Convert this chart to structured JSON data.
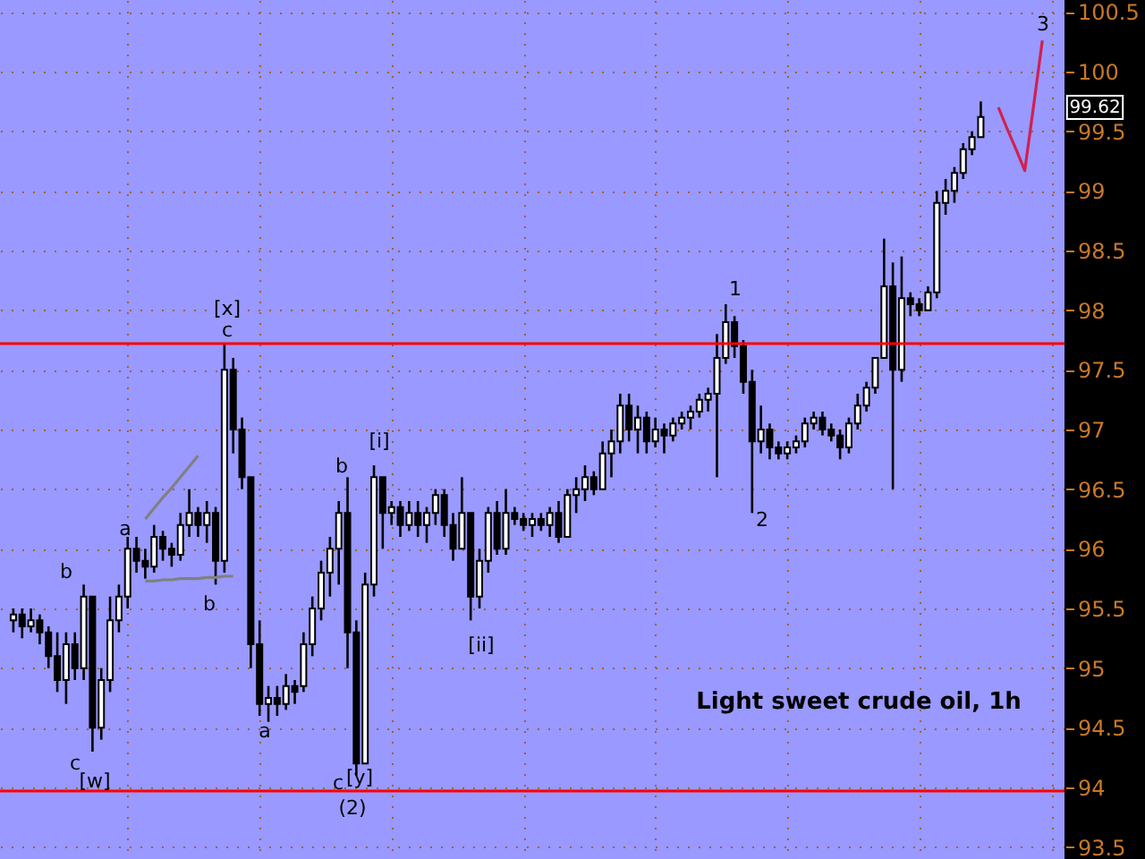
{
  "chart_data": {
    "type": "candlestick",
    "title": "Light sweet crude oil, 1h",
    "color": "#000000",
    "categories": [
      null,
      null,
      null,
      null,
      null,
      null,
      null,
      null,
      null,
      null,
      null,
      null,
      null,
      null,
      null,
      null,
      null,
      null,
      null,
      null,
      null,
      null,
      null,
      null,
      null,
      null,
      null,
      null,
      null,
      null,
      null,
      null,
      null,
      null,
      null,
      null,
      null,
      null,
      null,
      null,
      null,
      null,
      null,
      null,
      null,
      null,
      null,
      null,
      null,
      null,
      null,
      null,
      null,
      null,
      null,
      null,
      null,
      null,
      null,
      null,
      null,
      null,
      null,
      null,
      null,
      null,
      null,
      null,
      null,
      null,
      null,
      null,
      null,
      null,
      null,
      null,
      null,
      null,
      null,
      null,
      null,
      null,
      null,
      null,
      null,
      null,
      null,
      null,
      null,
      null,
      null,
      null,
      null,
      null,
      null,
      null,
      null,
      null,
      null,
      null,
      null,
      null,
      null,
      null,
      null,
      null,
      null,
      null,
      null,
      null,
      null,
      null,
      null,
      null,
      null,
      null,
      null,
      null,
      null
    ],
    "ohlc": [
      [
        95.4,
        95.5,
        95.3,
        95.45
      ],
      [
        95.45,
        95.5,
        95.25,
        95.35
      ],
      [
        95.35,
        95.5,
        95.3,
        95.4
      ],
      [
        95.4,
        95.45,
        95.2,
        95.3
      ],
      [
        95.3,
        95.35,
        95.0,
        95.1
      ],
      [
        95.1,
        95.3,
        94.8,
        94.9
      ],
      [
        94.9,
        95.3,
        94.7,
        95.2
      ],
      [
        95.2,
        95.3,
        94.9,
        95.0
      ],
      [
        95.0,
        95.7,
        94.9,
        95.6
      ],
      [
        95.6,
        95.6,
        94.3,
        94.5
      ],
      [
        94.5,
        95.0,
        94.4,
        94.9
      ],
      [
        94.9,
        95.6,
        94.8,
        95.4
      ],
      [
        95.4,
        95.7,
        95.3,
        95.6
      ],
      [
        95.6,
        96.1,
        95.5,
        96.0
      ],
      [
        96.0,
        96.1,
        95.8,
        95.9
      ],
      [
        95.9,
        96.0,
        95.75,
        95.85
      ],
      [
        95.85,
        96.2,
        95.8,
        96.1
      ],
      [
        96.1,
        96.15,
        95.9,
        96.0
      ],
      [
        96.0,
        96.05,
        95.85,
        95.95
      ],
      [
        95.95,
        96.3,
        95.9,
        96.2
      ],
      [
        96.2,
        96.5,
        96.1,
        96.3
      ],
      [
        96.3,
        96.35,
        96.1,
        96.2
      ],
      [
        96.2,
        96.4,
        96.05,
        96.3
      ],
      [
        96.3,
        96.35,
        95.7,
        95.9
      ],
      [
        95.9,
        97.72,
        95.8,
        97.5
      ],
      [
        97.5,
        97.6,
        96.8,
        97.0
      ],
      [
        97.0,
        97.1,
        96.5,
        96.6
      ],
      [
        96.6,
        96.6,
        95.0,
        95.2
      ],
      [
        95.2,
        95.4,
        94.6,
        94.7
      ],
      [
        94.7,
        94.85,
        94.55,
        94.75
      ],
      [
        94.75,
        94.85,
        94.6,
        94.7
      ],
      [
        94.7,
        94.95,
        94.65,
        94.85
      ],
      [
        94.85,
        94.9,
        94.7,
        94.8
      ],
      [
        94.85,
        95.3,
        94.8,
        95.2
      ],
      [
        95.2,
        95.6,
        95.1,
        95.5
      ],
      [
        95.5,
        95.9,
        95.4,
        95.8
      ],
      [
        95.8,
        96.1,
        95.6,
        96.0
      ],
      [
        96.0,
        96.4,
        95.7,
        96.3
      ],
      [
        96.3,
        96.6,
        95.0,
        95.3
      ],
      [
        95.3,
        95.4,
        94.1,
        94.2
      ],
      [
        94.2,
        95.8,
        94.2,
        95.7
      ],
      [
        95.7,
        96.7,
        95.6,
        96.6
      ],
      [
        96.6,
        96.6,
        96.0,
        96.3
      ],
      [
        96.3,
        96.4,
        96.2,
        96.35
      ],
      [
        96.35,
        96.4,
        96.1,
        96.2
      ],
      [
        96.2,
        96.4,
        96.15,
        96.3
      ],
      [
        96.3,
        96.4,
        96.1,
        96.2
      ],
      [
        96.2,
        96.35,
        96.05,
        96.3
      ],
      [
        96.3,
        96.5,
        96.2,
        96.45
      ],
      [
        96.45,
        96.5,
        96.1,
        96.2
      ],
      [
        96.2,
        96.3,
        95.9,
        96.0
      ],
      [
        96.0,
        96.6,
        96.0,
        96.3
      ],
      [
        96.3,
        96.3,
        95.4,
        95.6
      ],
      [
        95.6,
        96.0,
        95.5,
        95.9
      ],
      [
        95.9,
        96.35,
        95.8,
        96.3
      ],
      [
        96.3,
        96.4,
        95.95,
        96.0
      ],
      [
        96.0,
        96.5,
        95.95,
        96.3
      ],
      [
        96.3,
        96.35,
        96.2,
        96.25
      ],
      [
        96.25,
        96.3,
        96.15,
        96.2
      ],
      [
        96.2,
        96.3,
        96.1,
        96.25
      ],
      [
        96.25,
        96.3,
        96.15,
        96.2
      ],
      [
        96.2,
        96.35,
        96.1,
        96.3
      ],
      [
        96.3,
        96.4,
        96.05,
        96.1
      ],
      [
        96.1,
        96.5,
        96.1,
        96.45
      ],
      [
        96.45,
        96.6,
        96.3,
        96.5
      ],
      [
        96.5,
        96.7,
        96.4,
        96.6
      ],
      [
        96.6,
        96.65,
        96.45,
        96.5
      ],
      [
        96.5,
        96.9,
        96.5,
        96.8
      ],
      [
        96.8,
        97.0,
        96.6,
        96.9
      ],
      [
        96.9,
        97.3,
        96.8,
        97.2
      ],
      [
        97.2,
        97.3,
        96.9,
        97.0
      ],
      [
        97.0,
        97.2,
        96.8,
        97.1
      ],
      [
        97.1,
        97.15,
        96.8,
        96.9
      ],
      [
        96.9,
        97.1,
        96.85,
        97.0
      ],
      [
        97.0,
        97.05,
        96.8,
        96.95
      ],
      [
        96.95,
        97.1,
        96.9,
        97.05
      ],
      [
        97.05,
        97.15,
        97.0,
        97.1
      ],
      [
        97.1,
        97.2,
        97.0,
        97.15
      ],
      [
        97.15,
        97.3,
        97.1,
        97.25
      ],
      [
        97.25,
        97.35,
        97.15,
        97.3
      ],
      [
        97.3,
        97.8,
        96.6,
        97.6
      ],
      [
        97.6,
        98.05,
        97.55,
        97.9
      ],
      [
        97.9,
        97.95,
        97.6,
        97.7
      ],
      [
        97.7,
        97.75,
        97.3,
        97.4
      ],
      [
        97.4,
        97.5,
        96.3,
        96.9
      ],
      [
        96.9,
        97.2,
        96.8,
        97.0
      ],
      [
        97.0,
        97.05,
        96.75,
        96.85
      ],
      [
        96.85,
        96.9,
        96.75,
        96.8
      ],
      [
        96.8,
        96.9,
        96.75,
        96.85
      ],
      [
        96.85,
        96.95,
        96.8,
        96.9
      ],
      [
        96.9,
        97.1,
        96.85,
        97.05
      ],
      [
        97.05,
        97.15,
        97.0,
        97.1
      ],
      [
        97.1,
        97.15,
        96.95,
        97.0
      ],
      [
        97.0,
        97.05,
        96.9,
        96.95
      ],
      [
        96.95,
        97.0,
        96.75,
        96.85
      ],
      [
        96.85,
        97.1,
        96.8,
        97.05
      ],
      [
        97.05,
        97.3,
        97.0,
        97.2
      ],
      [
        97.2,
        97.4,
        97.15,
        97.35
      ],
      [
        97.35,
        97.6,
        97.3,
        97.6
      ],
      [
        97.6,
        98.6,
        97.6,
        98.2
      ],
      [
        98.2,
        98.4,
        96.5,
        97.5
      ],
      [
        97.5,
        98.45,
        97.4,
        98.1
      ],
      [
        98.1,
        98.15,
        97.95,
        98.05
      ],
      [
        98.05,
        98.1,
        97.95,
        98.0
      ],
      [
        98.0,
        98.2,
        98.0,
        98.15
      ],
      [
        98.15,
        99.0,
        98.1,
        98.9
      ],
      [
        98.9,
        99.1,
        98.8,
        99.0
      ],
      [
        99.0,
        99.2,
        98.9,
        99.15
      ],
      [
        99.15,
        99.4,
        99.1,
        99.35
      ],
      [
        99.35,
        99.5,
        99.3,
        99.45
      ],
      [
        99.45,
        99.75,
        99.45,
        99.62
      ],
      null,
      null,
      null,
      null,
      null,
      null,
      null,
      null
    ],
    "series": [
      {
        "type": "line",
        "color": "#808080",
        "values": [
          null,
          null,
          null,
          null,
          null,
          null,
          null,
          null,
          null,
          null,
          null,
          null,
          null,
          null,
          null,
          96.25,
          96.34,
          96.43,
          96.51,
          96.6,
          96.69,
          96.78,
          null,
          null,
          null,
          null,
          null,
          null,
          null,
          null,
          null,
          null,
          null,
          null,
          null,
          null,
          null,
          null,
          null,
          null,
          null,
          null,
          null,
          null,
          null,
          null,
          null,
          null,
          null,
          null,
          null,
          null,
          null,
          null,
          null,
          null,
          null,
          null,
          null,
          null,
          null,
          null,
          null,
          null,
          null,
          null,
          null,
          null,
          null,
          null,
          null,
          null,
          null,
          null,
          null,
          null,
          null,
          null,
          null,
          null,
          null,
          null,
          null,
          null,
          null,
          null,
          null,
          null,
          null,
          null,
          null,
          null,
          null,
          null,
          null,
          null,
          null,
          null,
          null,
          null,
          null,
          null,
          null,
          null,
          null,
          null,
          null,
          null,
          null,
          null,
          null,
          null,
          null,
          null,
          null,
          null,
          null,
          null,
          null
        ]
      },
      {
        "type": "line",
        "color": "#808080",
        "values": [
          null,
          null,
          null,
          null,
          null,
          null,
          null,
          null,
          null,
          null,
          null,
          null,
          null,
          null,
          null,
          95.73,
          95.73,
          95.74,
          95.74,
          95.75,
          95.75,
          95.75,
          95.76,
          95.76,
          95.77,
          95.77,
          null,
          null,
          null,
          null,
          null,
          null,
          null,
          null,
          null,
          null,
          null,
          null,
          null,
          null,
          null,
          null,
          null,
          null,
          null,
          null,
          null,
          null,
          null,
          null,
          null,
          null,
          null,
          null,
          null,
          null,
          null,
          null,
          null,
          null,
          null,
          null,
          null,
          null,
          null,
          null,
          null,
          null,
          null,
          null,
          null,
          null,
          null,
          null,
          null,
          null,
          null,
          null,
          null,
          null,
          null,
          null,
          null,
          null,
          null,
          null,
          null,
          null,
          null,
          null,
          null,
          null,
          null,
          null,
          null,
          null,
          null,
          null,
          null,
          null,
          null,
          null,
          null,
          null,
          null,
          null,
          null,
          null,
          null,
          null,
          null,
          null,
          null,
          null,
          null,
          null,
          null,
          null,
          null
        ]
      },
      {
        "type": "line",
        "color": "#d02050",
        "values": [
          null,
          null,
          null,
          null,
          null,
          null,
          null,
          null,
          null,
          null,
          null,
          null,
          null,
          null,
          null,
          null,
          null,
          null,
          null,
          null,
          null,
          null,
          null,
          null,
          null,
          null,
          null,
          null,
          null,
          null,
          null,
          null,
          null,
          null,
          null,
          null,
          null,
          null,
          null,
          null,
          null,
          null,
          null,
          null,
          null,
          null,
          null,
          null,
          null,
          null,
          null,
          null,
          null,
          null,
          null,
          null,
          null,
          null,
          null,
          null,
          null,
          null,
          null,
          null,
          null,
          null,
          null,
          null,
          null,
          null,
          null,
          null,
          null,
          null,
          null,
          null,
          null,
          null,
          null,
          null,
          null,
          null,
          null,
          null,
          null,
          null,
          null,
          null,
          null,
          null,
          null,
          null,
          null,
          null,
          null,
          null,
          null,
          null,
          null,
          null,
          null,
          null,
          null,
          null,
          null,
          null,
          null,
          null,
          null,
          null,
          null,
          null,
          99.7,
          99.52,
          99.35,
          99.17,
          99.71,
          100.26,
          null
        ]
      }
    ],
    "ylim": [
      93.4,
      100.6
    ],
    "yticks": [
      93.5,
      94,
      94.5,
      95,
      95.5,
      96,
      96.5,
      97,
      97.5,
      98,
      98.5,
      99,
      99.5,
      100,
      100.5
    ],
    "tick_labels": "y",
    "grid": true,
    "ref_lines": [
      {
        "axis": "y",
        "value": 97.72,
        "color": "#ff0000"
      },
      {
        "axis": "y",
        "value": 93.97,
        "color": "#ff0000"
      }
    ],
    "annotations": [
      "b",
      "c",
      "[w]",
      "a",
      "b",
      "c",
      "[x]",
      "a",
      "b",
      "c",
      "[y]",
      "(2)",
      "[i]",
      "[ii]",
      "1",
      "2",
      "3",
      "99.62"
    ]
  }
}
